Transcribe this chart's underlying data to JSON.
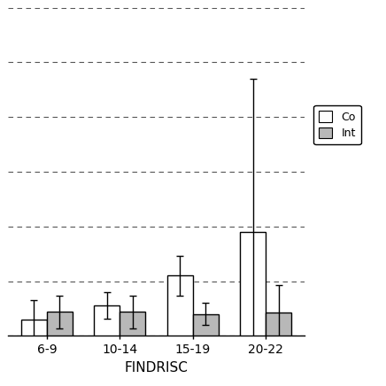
{
  "categories": [
    "6-9",
    "10-14",
    "15-19",
    "20-22"
  ],
  "control_means": [
    1.5,
    2.8,
    5.5,
    9.5
  ],
  "control_errors": [
    1.8,
    1.2,
    1.8,
    14.0
  ],
  "intervention_means": [
    2.2,
    2.2,
    2.0,
    2.1
  ],
  "intervention_errors": [
    1.5,
    1.5,
    1.0,
    2.5
  ],
  "control_color": "#ffffff",
  "intervention_color": "#b8b8b8",
  "bar_edge_color": "#000000",
  "xlabel": "FINDRISC",
  "legend_labels": [
    "Co",
    "Int"
  ],
  "ylim": [
    0,
    30
  ],
  "yticks": [
    0,
    5,
    10,
    15,
    20,
    25,
    30
  ],
  "grid_color": "#555555",
  "bar_width": 0.35,
  "figure_bg": "#ffffff",
  "capsize": 3,
  "elinewidth": 1.0
}
